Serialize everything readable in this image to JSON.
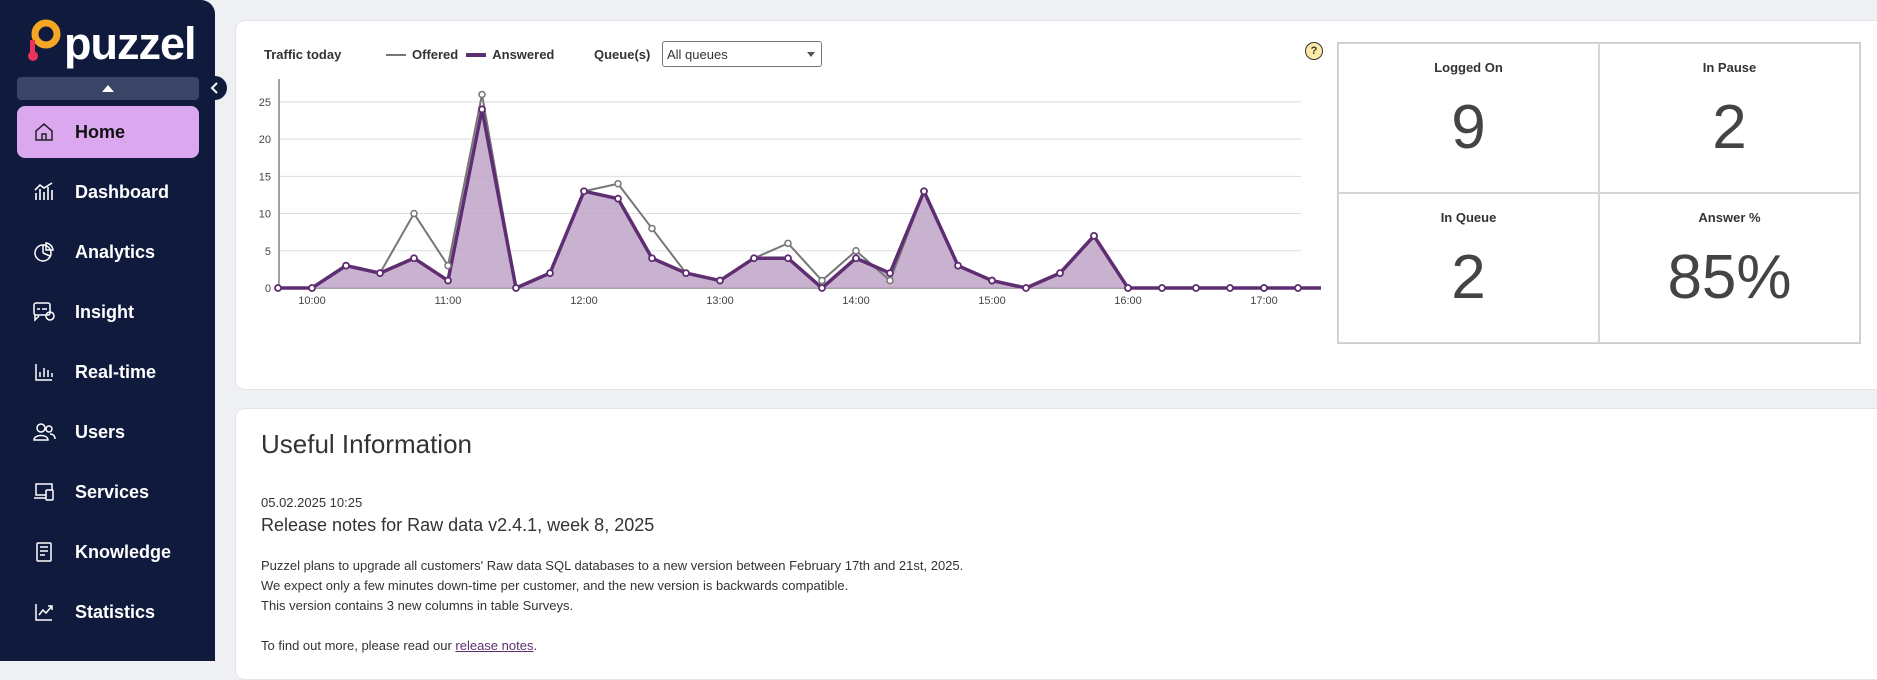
{
  "brand": {
    "name": "puzzel"
  },
  "sidebar": {
    "items": [
      {
        "label": "Home",
        "icon": "home-icon",
        "active": true
      },
      {
        "label": "Dashboard",
        "icon": "dashboard-icon",
        "active": false
      },
      {
        "label": "Analytics",
        "icon": "analytics-icon",
        "active": false
      },
      {
        "label": "Insight",
        "icon": "insight-icon",
        "active": false
      },
      {
        "label": "Real-time",
        "icon": "realtime-icon",
        "active": false
      },
      {
        "label": "Users",
        "icon": "users-icon",
        "active": false
      },
      {
        "label": "Services",
        "icon": "services-icon",
        "active": false
      },
      {
        "label": "Knowledge",
        "icon": "knowledge-icon",
        "active": false
      },
      {
        "label": "Statistics",
        "icon": "statistics-icon",
        "active": false
      }
    ]
  },
  "traffic": {
    "title": "Traffic today",
    "legend_offered": "Offered",
    "legend_answered": "Answered",
    "queue_label": "Queue(s)",
    "queue_value": "All queues",
    "help": "?"
  },
  "stats": {
    "logged_on_label": "Logged On",
    "logged_on_value": "9",
    "in_pause_label": "In Pause",
    "in_pause_value": "2",
    "in_queue_label": "In Queue",
    "in_queue_value": "2",
    "answer_pct_label": "Answer %",
    "answer_pct_value": "85%"
  },
  "info": {
    "title": "Useful Information",
    "date": "05.02.2025 10:25",
    "headline": "Release notes for Raw data v2.4.1, week 8, 2025",
    "line1": "Puzzel plans to upgrade all customers' Raw data SQL databases to a new version between February 17th and 21st, 2025.",
    "line2": "We expect only a few minutes down-time per customer, and the new version is backwards compatible.",
    "line3": "This version contains 3 new columns in table Surveys.",
    "line4_prefix": "To find out more, please read our ",
    "line4_link": "release notes",
    "line4_suffix": "."
  },
  "colors": {
    "sidebar": "#0f1a3d",
    "active": "#dba8f0",
    "answered": "#5f2e72",
    "offered": "#777777",
    "fill": "#bfa5c8"
  },
  "chart_data": {
    "type": "area",
    "x": [
      "09:45",
      "10:00",
      "10:15",
      "10:30",
      "10:45",
      "11:00",
      "11:15",
      "11:30",
      "11:45",
      "12:00",
      "12:15",
      "12:30",
      "12:45",
      "13:00",
      "13:15",
      "13:30",
      "13:45",
      "14:00",
      "14:15",
      "14:30",
      "14:45",
      "15:00",
      "15:15",
      "15:30",
      "15:45",
      "16:00",
      "16:15",
      "16:30",
      "16:45",
      "17:00",
      "17:15",
      "17:30"
    ],
    "xticks": [
      "10:00",
      "11:00",
      "12:00",
      "13:00",
      "14:00",
      "15:00",
      "16:00",
      "17:00"
    ],
    "series": [
      {
        "name": "Offered",
        "values": [
          0,
          0,
          3,
          2,
          10,
          3,
          26,
          0,
          2,
          13,
          14,
          8,
          2,
          1,
          4,
          6,
          1,
          5,
          1,
          13,
          3,
          1,
          0,
          2,
          7,
          0,
          0,
          0,
          0,
          0,
          0,
          0
        ]
      },
      {
        "name": "Answered",
        "values": [
          0,
          0,
          3,
          2,
          4,
          1,
          24,
          0,
          2,
          13,
          12,
          4,
          2,
          1,
          4,
          4,
          0,
          4,
          2,
          13,
          3,
          1,
          0,
          2,
          7,
          0,
          0,
          0,
          0,
          0,
          0,
          0
        ]
      }
    ],
    "ylim": [
      0,
      27
    ],
    "yticks": [
      0,
      5,
      10,
      15,
      20,
      25
    ],
    "grid": true
  }
}
